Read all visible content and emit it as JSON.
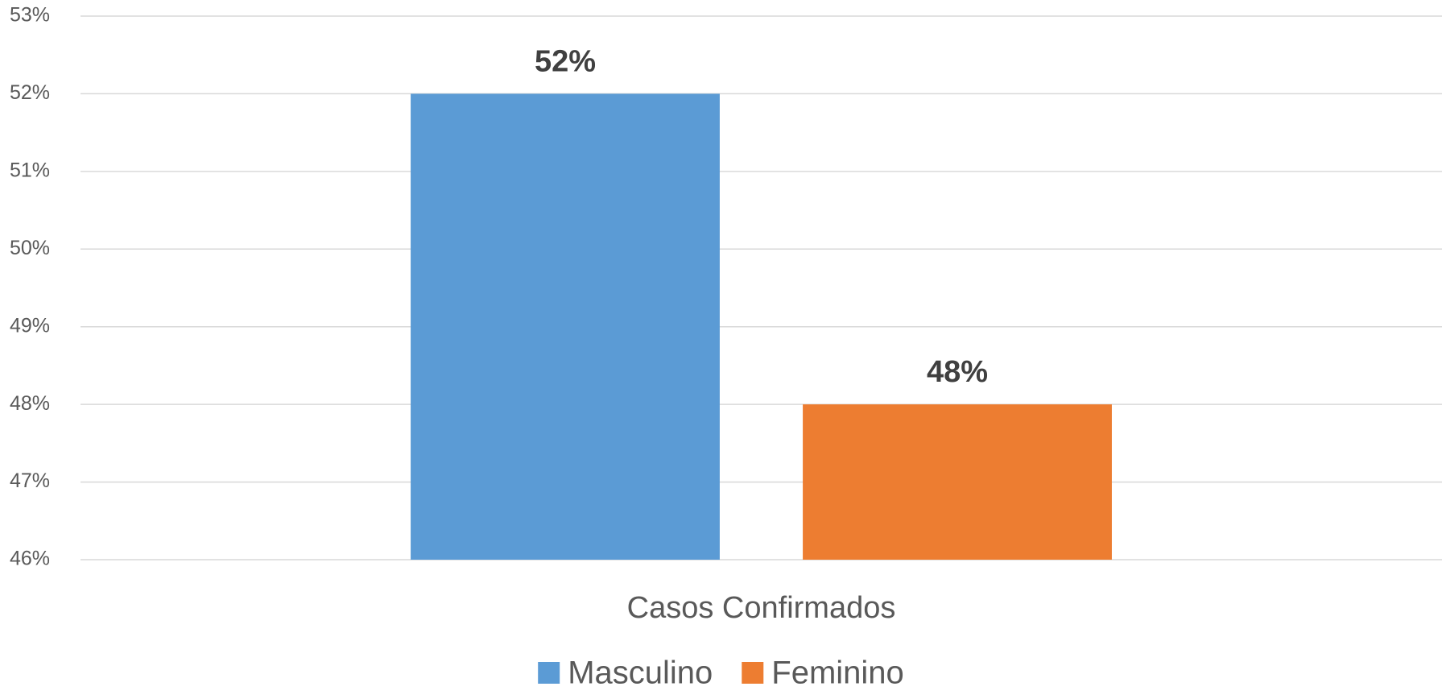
{
  "chart_data": {
    "type": "bar",
    "categories": [
      "Casos Confirmados"
    ],
    "series": [
      {
        "name": "Masculino",
        "color": "#5b9bd5",
        "values": [
          52
        ],
        "value_labels": [
          "52%"
        ]
      },
      {
        "name": "Feminino",
        "color": "#ed7d31",
        "values": [
          48
        ],
        "value_labels": [
          "48%"
        ]
      }
    ],
    "ylim": [
      46,
      53
    ],
    "yticks": [
      {
        "value": 46,
        "label": "46%"
      },
      {
        "value": 47,
        "label": "47%"
      },
      {
        "value": 48,
        "label": "48%"
      },
      {
        "value": 49,
        "label": "49%"
      },
      {
        "value": 50,
        "label": "50%"
      },
      {
        "value": 51,
        "label": "51%"
      },
      {
        "value": 52,
        "label": "52%"
      },
      {
        "value": 53,
        "label": "53%"
      }
    ],
    "grid": true,
    "legend": "bottom"
  }
}
